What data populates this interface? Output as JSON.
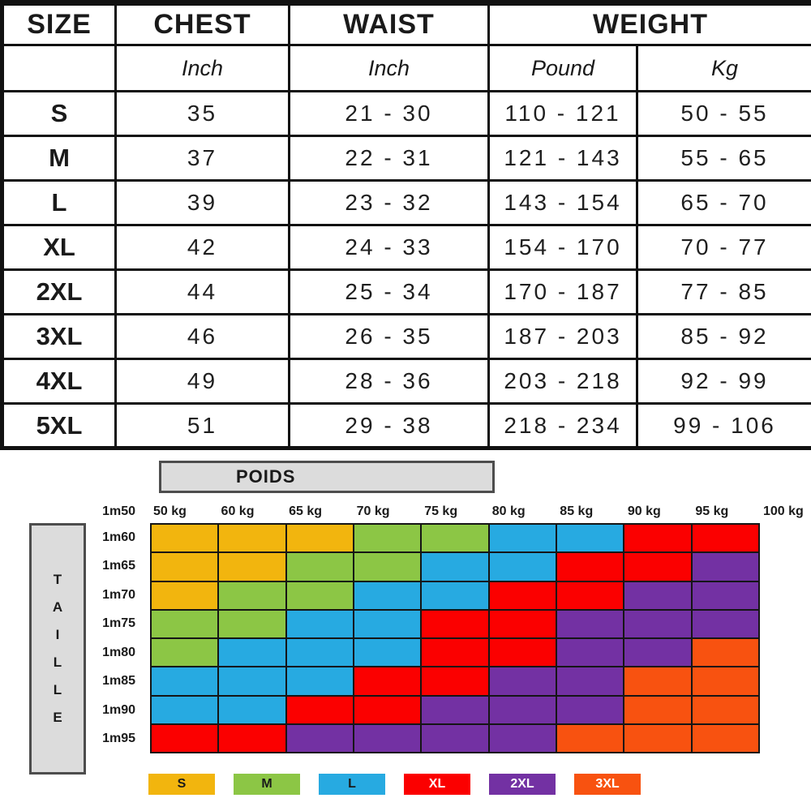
{
  "chart_data": [
    {
      "type": "table",
      "title_row": [
        "SIZE",
        "CHEST",
        "WAIST",
        "WEIGHT"
      ],
      "unit_row": [
        "",
        "Inch",
        "Inch",
        "Pound",
        "Kg"
      ],
      "rows": [
        [
          "S",
          "35",
          "21 - 30",
          "110 - 121",
          "50 - 55"
        ],
        [
          "M",
          "37",
          "22 - 31",
          "121 - 143",
          "55 - 65"
        ],
        [
          "L",
          "39",
          "23 - 32",
          "143 - 154",
          "65 - 70"
        ],
        [
          "XL",
          "42",
          "24 - 33",
          "154 - 170",
          "70 - 77"
        ],
        [
          "2XL",
          "44",
          "25 - 34",
          "170 - 187",
          "77 - 85"
        ],
        [
          "3XL",
          "46",
          "26 - 35",
          "187 - 203",
          "85 - 92"
        ],
        [
          "4XL",
          "49",
          "28 - 36",
          "203 - 218",
          "92 - 99"
        ],
        [
          "5XL",
          "51",
          "29 - 38",
          "218 - 234",
          "99 - 106"
        ]
      ]
    },
    {
      "type": "heatmap",
      "title": "POIDS",
      "ylabel": "TAILLE",
      "corner_label": "1m50",
      "x_labels": [
        "50 kg",
        "60 kg",
        "65 kg",
        "70 kg",
        "75 kg",
        "80 kg",
        "85 kg",
        "90 kg",
        "95 kg",
        "100 kg"
      ],
      "y_labels": [
        "1m60",
        "1m65",
        "1m70",
        "1m75",
        "1m80",
        "1m85",
        "1m90",
        "1m95"
      ],
      "legend": [
        "S",
        "M",
        "L",
        "XL",
        "2XL",
        "3XL"
      ],
      "sizes": {
        "S": {
          "color": "#F2B50E",
          "text": "#1a1a1a"
        },
        "M": {
          "color": "#8CC645",
          "text": "#1a1a1a"
        },
        "L": {
          "color": "#27AAE1",
          "text": "#1a1a1a"
        },
        "XL": {
          "color": "#FB0000",
          "text": "#ffffff"
        },
        "2XL": {
          "color": "#7331A3",
          "text": "#ffffff"
        },
        "3XL": {
          "color": "#F85210",
          "text": "#ffffff"
        }
      },
      "grid": [
        [
          "S",
          "S",
          "S",
          "M",
          "M",
          "L",
          "L",
          "XL",
          "XL"
        ],
        [
          "S",
          "S",
          "M",
          "M",
          "L",
          "L",
          "XL",
          "XL",
          "2XL"
        ],
        [
          "S",
          "M",
          "M",
          "L",
          "L",
          "XL",
          "XL",
          "2XL",
          "2XL"
        ],
        [
          "M",
          "M",
          "L",
          "L",
          "XL",
          "XL",
          "2XL",
          "2XL",
          "2XL"
        ],
        [
          "M",
          "L",
          "L",
          "L",
          "XL",
          "XL",
          "2XL",
          "2XL",
          "3XL"
        ],
        [
          "L",
          "L",
          "L",
          "XL",
          "XL",
          "2XL",
          "2XL",
          "3XL",
          "3XL"
        ],
        [
          "L",
          "L",
          "XL",
          "XL",
          "2XL",
          "2XL",
          "2XL",
          "3XL",
          "3XL"
        ],
        [
          "XL",
          "XL",
          "2XL",
          "2XL",
          "2XL",
          "2XL",
          "3XL",
          "3XL",
          "3XL"
        ]
      ]
    }
  ]
}
